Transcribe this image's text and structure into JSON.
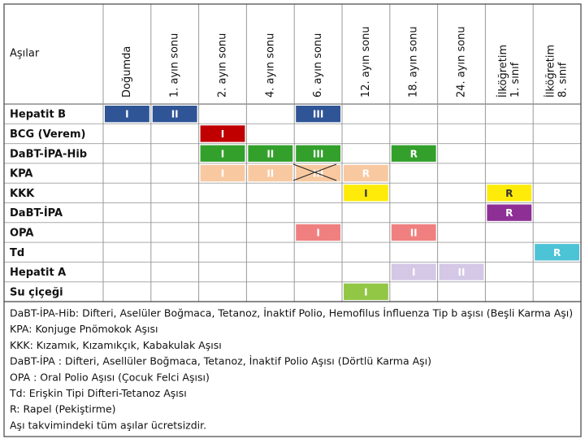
{
  "table": {
    "corner": "Aşılar",
    "columns": [
      [
        "Doğumda"
      ],
      [
        "1. ayın sonu"
      ],
      [
        "2. ayın sonu"
      ],
      [
        "4. ayın sonu"
      ],
      [
        "6. ayın sonu"
      ],
      [
        "12. ayın sonu"
      ],
      [
        "18. ayın sonu"
      ],
      [
        "24. ayın sonu"
      ],
      [
        "İlköğretim",
        "1. sınıf"
      ],
      [
        "İlköğretim",
        "8. sınıf"
      ]
    ],
    "rows": [
      {
        "name": "Hepatit B",
        "color": "#2f5597",
        "text_color": "#ffffff",
        "cells": [
          "I",
          "II",
          null,
          null,
          "III",
          null,
          null,
          null,
          null,
          null
        ]
      },
      {
        "name": "BCG (Verem)",
        "color": "#c00000",
        "text_color": "#ffffff",
        "cells": [
          null,
          null,
          "I",
          null,
          null,
          null,
          null,
          null,
          null,
          null
        ]
      },
      {
        "name": "DaBT-İPA-Hib",
        "color": "#33a02c",
        "text_color": "#ffffff",
        "cells": [
          null,
          null,
          "I",
          "II",
          "III",
          null,
          "R",
          null,
          null,
          null
        ]
      },
      {
        "name": "KPA",
        "color": "#f8c9a0",
        "text_color": "#ffffff",
        "cells": [
          null,
          null,
          "I",
          "II",
          "III",
          "R",
          null,
          null,
          null,
          null
        ]
      },
      {
        "name": "KKK",
        "color": "#ffeb0a",
        "text_color": "#333333",
        "cells": [
          null,
          null,
          null,
          null,
          null,
          "I",
          null,
          null,
          "R",
          null
        ]
      },
      {
        "name": "DaBT-İPA",
        "color": "#8e2f96",
        "text_color": "#ffffff",
        "cells": [
          null,
          null,
          null,
          null,
          null,
          null,
          null,
          null,
          "R",
          null
        ]
      },
      {
        "name": "OPA",
        "color": "#f08080",
        "text_color": "#ffffff",
        "cells": [
          null,
          null,
          null,
          null,
          "I",
          null,
          "II",
          null,
          null,
          null
        ]
      },
      {
        "name": "Td",
        "color": "#4dc3d6",
        "text_color": "#ffffff",
        "cells": [
          null,
          null,
          null,
          null,
          null,
          null,
          null,
          null,
          null,
          "R"
        ]
      },
      {
        "name": "Hepatit A",
        "color": "#d4c8e6",
        "text_color": "#ffffff",
        "cells": [
          null,
          null,
          null,
          null,
          null,
          null,
          "I",
          "II",
          null,
          null
        ]
      },
      {
        "name": "Su çiçeği",
        "color": "#92c746",
        "text_color": "#ffffff",
        "cells": [
          null,
          null,
          null,
          null,
          null,
          "I",
          null,
          null,
          null,
          null
        ]
      }
    ],
    "notes": [
      "DaBT-İPA-Hib: Difteri, Aselüler Boğmaca, Tetanoz, İnaktif Polio, Hemofilus İnfluenza Tip b aşısı (Beşli Karma Aşı)",
      "KPA: Konjuge Pnömokok Aşısı",
      "KKK: Kızamık, Kızamıkçık, Kabakulak Aşısı",
      "DaBT-İPA : Difteri, Asellüler Boğmaca, Tetanoz, İnaktif Polio Aşısı (Dörtlü Karma Aşı)",
      "OPA : Oral Polio Aşısı (Çocuk Felci Aşısı)",
      "Td: Erişkin Tipi Difteri-Tetanoz Aşısı",
      "R: Rapel (Pekiştirme)",
      "Aşı takvimindeki tüm aşılar ücretsizdir."
    ]
  }
}
